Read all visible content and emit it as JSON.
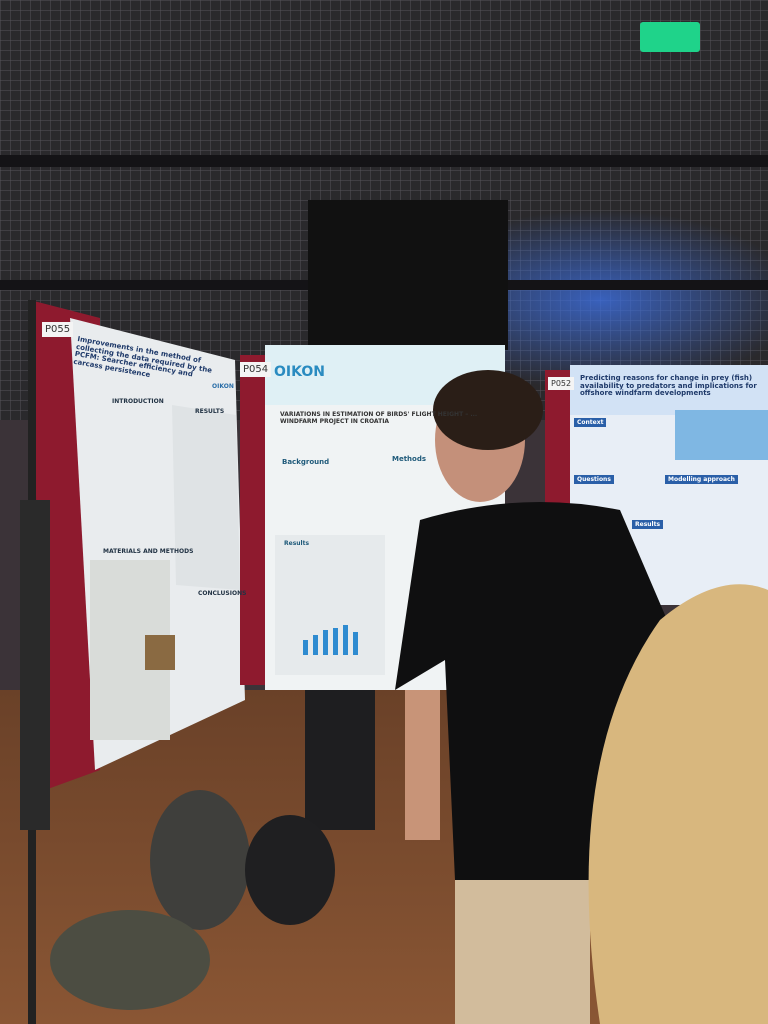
{
  "posters": [
    {
      "code": "P055",
      "logo": "OIKON",
      "title": "Improvements in the method of collecting the data required by the PCFM: Searcher efficiency and carcass persistence",
      "sections": [
        "INTRODUCTION",
        "RESULTS",
        "MATERIALS AND METHODS",
        "CONCLUSIONS"
      ]
    },
    {
      "code": "P054",
      "logo": "OIKON",
      "title": "VARIATIONS IN ESTIMATION OF BIRDS' FLIGHT HEIGHT – ... WINDFARM PROJECT IN CROATIA",
      "sections": [
        "Background",
        "Methods",
        "Results"
      ]
    },
    {
      "code": "P052",
      "title": "Predicting reasons for change in prey (fish) availability to predators and implications for offshore windfarm developments",
      "sections": [
        "Context",
        "Questions",
        "Modelling approach",
        "Results"
      ]
    }
  ]
}
